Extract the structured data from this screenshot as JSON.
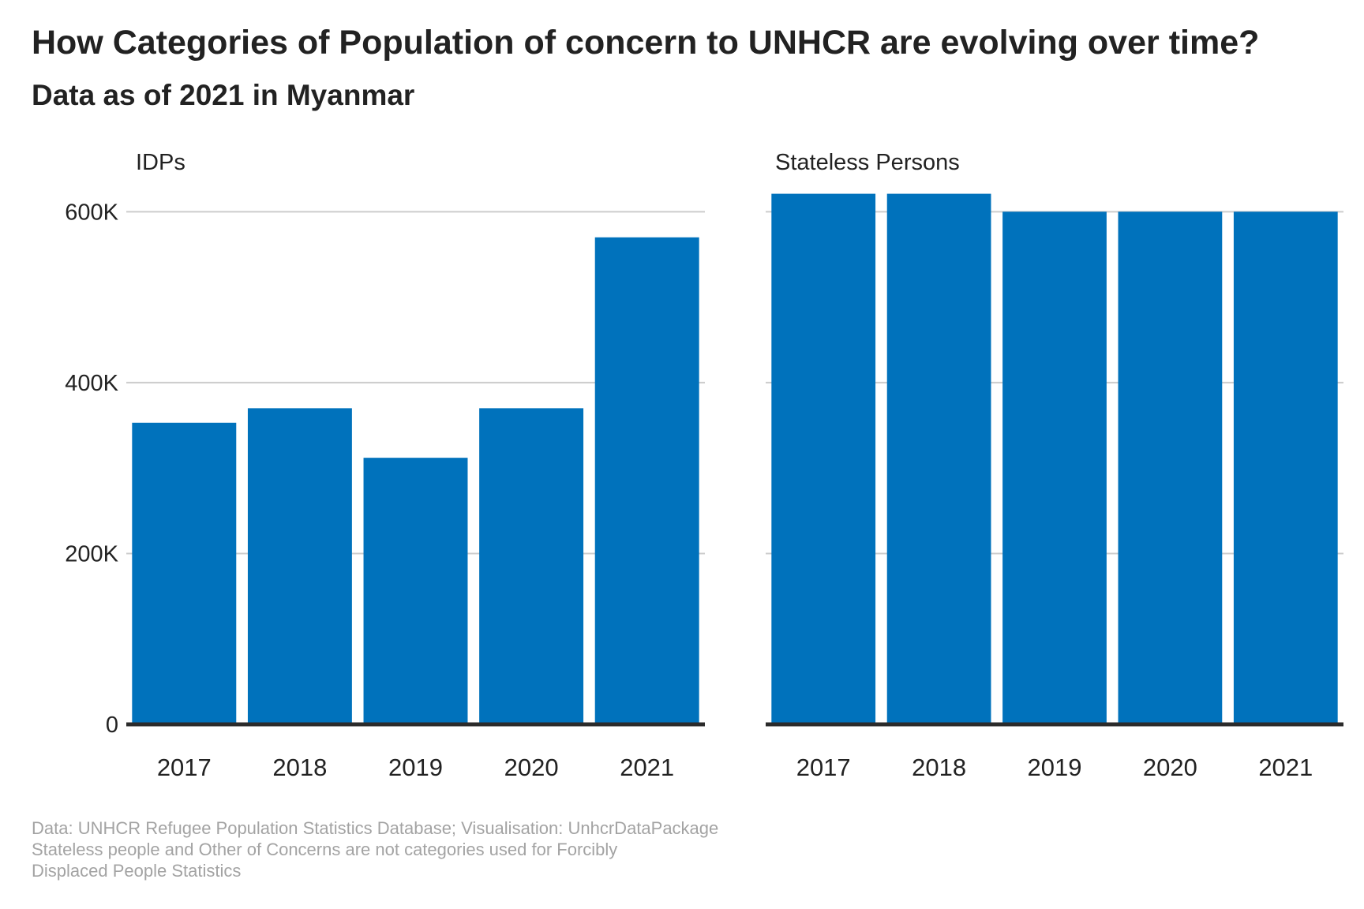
{
  "title": "How Categories of Population of concern to UNHCR are evolving over time?",
  "subtitle": "Data as of 2021  in Myanmar",
  "caption": "Data: UNHCR Refugee Population Statistics Database; Visualisation: UnhcrDataPackage\n Stateless people and Other of Concerns are not categories used for Forcibly\nDisplaced People Statistics",
  "colors": {
    "bar": "#0072bc",
    "grid": "#cccccc",
    "axis": "#2b2b2b",
    "text": "#222222"
  },
  "chart_data": {
    "type": "bar",
    "categories": [
      "2017",
      "2018",
      "2019",
      "2020",
      "2021"
    ],
    "ylim": [
      0,
      640000
    ],
    "yticks": [
      0,
      200000,
      400000,
      600000
    ],
    "yticklabels": [
      "0",
      "200K",
      "400K",
      "600K"
    ],
    "grid": true,
    "facets": [
      {
        "name": "IDPs",
        "values": [
          353000,
          370000,
          312000,
          370000,
          570000
        ]
      },
      {
        "name": "Stateless Persons",
        "values": [
          621000,
          621000,
          600000,
          600000,
          600000
        ]
      }
    ]
  }
}
